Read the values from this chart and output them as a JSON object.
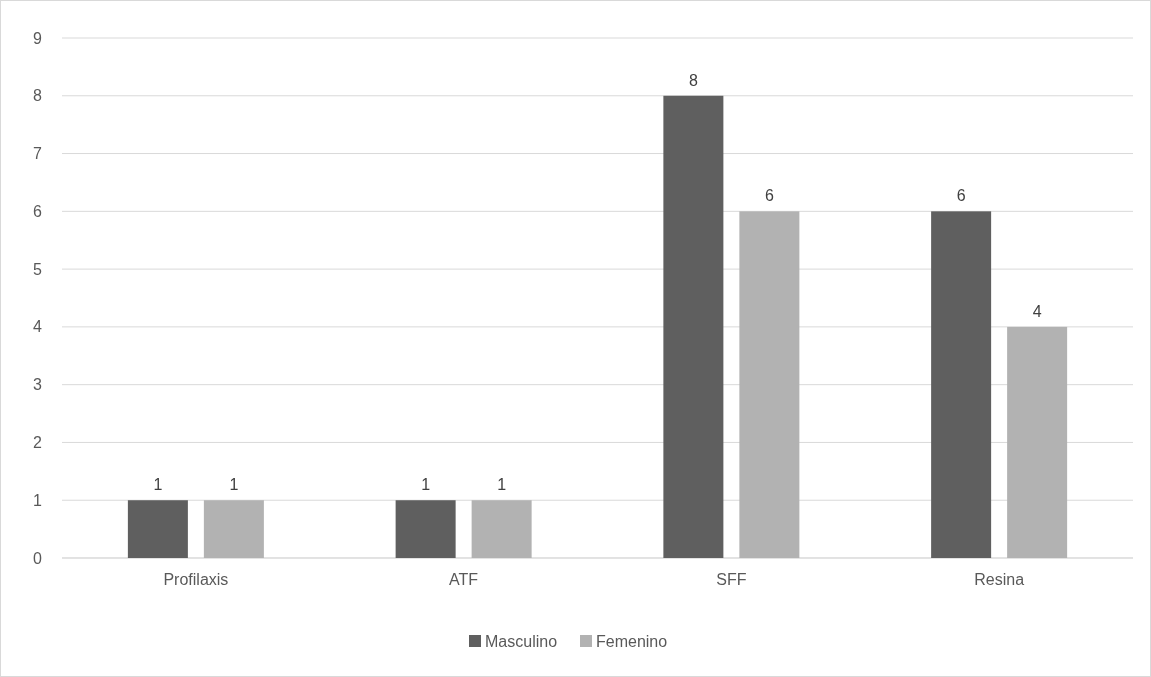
{
  "chart_data": {
    "type": "bar",
    "categories": [
      "Profilaxis",
      "ATF",
      "SFF",
      "Resina"
    ],
    "series": [
      {
        "name": "Masculino",
        "color": "#5f5f5f",
        "values": [
          1,
          1,
          8,
          6
        ]
      },
      {
        "name": "Femenino",
        "color": "#b2b2b2",
        "values": [
          1,
          1,
          6,
          4
        ]
      }
    ],
    "ylim": [
      0,
      9
    ],
    "yticks": [
      0,
      1,
      2,
      3,
      4,
      5,
      6,
      7,
      8,
      9
    ],
    "grid": "y",
    "legend": "bottom",
    "data_labels": true
  }
}
